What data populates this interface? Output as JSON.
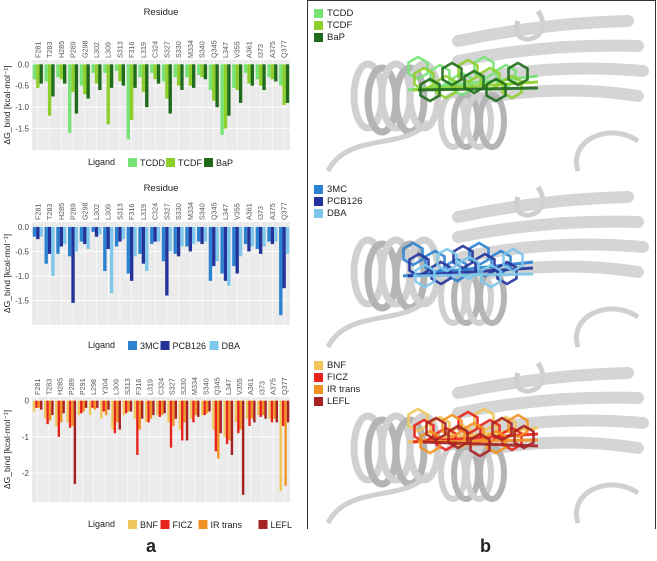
{
  "figure": {
    "label_a": "a",
    "label_b": "b"
  },
  "colors": {
    "TCDD": "#77e377",
    "TCDF": "#8fcf2b",
    "BaP": "#1f6b1b",
    "3MC": "#2b82d0",
    "PCB126": "#24339a",
    "DBA": "#7ec7ea",
    "BNF": "#f0c65a",
    "FICZ": "#e8231c",
    "IR trans": "#f39224",
    "LEFL": "#a62222"
  },
  "chart_data": [
    {
      "type": "bar",
      "title": "Residue",
      "ylabel": "ΔG_bind [kcal·mol⁻¹]",
      "legend_title": "Ligand",
      "ylim": [
        -2.0,
        0.1
      ],
      "yticks": [
        0.0,
        -0.5,
        -1.0,
        -1.5
      ],
      "categories": [
        "F281",
        "T283",
        "H285",
        "P289",
        "G298",
        "L302",
        "L309",
        "S313",
        "F316",
        "L319",
        "C324",
        "S327",
        "S330",
        "M334",
        "S340",
        "Q345",
        "L347",
        "V355",
        "A361",
        "I373",
        "A375",
        "Q377"
      ],
      "series": [
        {
          "name": "TCDD",
          "values": [
            -0.35,
            -0.4,
            -0.3,
            -1.6,
            -0.5,
            -0.2,
            -0.2,
            -0.15,
            -1.75,
            -0.3,
            -0.2,
            -0.4,
            -0.3,
            -0.3,
            -0.25,
            -0.6,
            -1.65,
            -0.55,
            -0.2,
            -0.35,
            -0.3,
            -0.5
          ]
        },
        {
          "name": "TCDF",
          "values": [
            -0.55,
            -1.2,
            -0.35,
            -0.65,
            -0.7,
            -0.45,
            -1.4,
            -0.4,
            -1.3,
            -0.65,
            -0.35,
            -0.8,
            -0.5,
            -0.5,
            -0.3,
            -0.85,
            -1.5,
            -0.6,
            -0.45,
            -0.5,
            -0.35,
            -0.95
          ]
        },
        {
          "name": "BaP",
          "values": [
            -0.45,
            -0.75,
            -0.45,
            -1.15,
            -0.8,
            -0.6,
            -0.55,
            -0.5,
            -0.55,
            -1.0,
            -0.45,
            -1.15,
            -0.6,
            -0.55,
            -0.35,
            -1.0,
            -1.2,
            -0.9,
            -0.5,
            -0.6,
            -0.4,
            -0.9
          ]
        }
      ]
    },
    {
      "type": "bar",
      "title": "Residue",
      "ylabel": "ΔG_bind [kcal·mol⁻¹]",
      "legend_title": "Ligand",
      "ylim": [
        -2.0,
        0.1
      ],
      "yticks": [
        0.0,
        -0.5,
        -1.0,
        -1.5
      ],
      "categories": [
        "F281",
        "T283",
        "H285",
        "P289",
        "G298",
        "L302",
        "L309",
        "S313",
        "F316",
        "L319",
        "C324",
        "S327",
        "S330",
        "M334",
        "S340",
        "Q345",
        "L347",
        "V355",
        "A361",
        "I373",
        "A375",
        "Q377"
      ],
      "series": [
        {
          "name": "3MC",
          "values": [
            -0.2,
            -0.75,
            -0.55,
            -0.6,
            -0.3,
            -0.1,
            -0.9,
            -0.4,
            -0.95,
            -0.55,
            -0.35,
            -0.7,
            -0.55,
            -0.4,
            -0.3,
            -1.1,
            -0.95,
            -0.8,
            -0.35,
            -0.45,
            -0.3,
            -1.8
          ]
        },
        {
          "name": "PCB126",
          "values": [
            -0.25,
            -0.55,
            -0.4,
            -1.55,
            -0.35,
            -0.2,
            -0.45,
            -0.3,
            -1.1,
            -0.75,
            -0.3,
            -1.4,
            -0.6,
            -0.5,
            -0.35,
            -0.8,
            -1.1,
            -0.95,
            -0.5,
            -0.55,
            -0.35,
            -1.25
          ]
        },
        {
          "name": "DBA",
          "values": [
            -0.2,
            -1.0,
            -0.35,
            -0.5,
            -0.45,
            -0.15,
            -1.35,
            -0.25,
            -0.6,
            -0.9,
            -0.3,
            -0.5,
            -0.4,
            -0.35,
            -0.3,
            -0.7,
            -1.2,
            -0.6,
            -0.4,
            -0.4,
            -0.3,
            -0.55
          ]
        }
      ]
    },
    {
      "type": "bar",
      "title": "",
      "ylabel": "ΔG_bind [kcal·mol⁻¹]",
      "legend_title": "Ligand",
      "ylim": [
        -2.8,
        0.1
      ],
      "yticks": [
        0,
        -1,
        -2
      ],
      "categories": [
        "F281",
        "T283",
        "H285",
        "P289",
        "P291",
        "L298",
        "Y304",
        "L309",
        "S313",
        "F316",
        "L319",
        "C324",
        "S327",
        "S330",
        "M334",
        "S340",
        "Q345",
        "L347",
        "V355",
        "A361",
        "I373",
        "A375",
        "Q377"
      ],
      "series": [
        {
          "name": "BNF",
          "values": [
            -0.3,
            -0.5,
            -0.7,
            -0.6,
            -0.4,
            -0.4,
            -0.5,
            -0.8,
            -0.4,
            -0.5,
            -0.6,
            -0.4,
            -0.6,
            -0.8,
            -0.5,
            -0.4,
            -0.8,
            -1.0,
            -0.6,
            -0.5,
            -0.4,
            -0.5,
            -2.5
          ]
        },
        {
          "name": "FICZ",
          "values": [
            -0.2,
            -0.65,
            -1.0,
            -0.75,
            -0.35,
            -0.2,
            -0.3,
            -0.9,
            -0.35,
            -1.5,
            -0.6,
            -0.45,
            -1.3,
            -1.1,
            -0.6,
            -0.4,
            -1.4,
            -1.2,
            -0.9,
            -0.7,
            -0.45,
            -0.6,
            -0.7
          ]
        },
        {
          "name": "IR trans",
          "values": [
            -0.2,
            -0.55,
            -0.6,
            -0.7,
            -0.3,
            -0.25,
            -0.4,
            -0.6,
            -0.3,
            -0.8,
            -0.5,
            -0.4,
            -0.7,
            -0.6,
            -0.4,
            -0.35,
            -1.6,
            -1.1,
            -0.8,
            -0.5,
            -0.4,
            -0.5,
            -2.35
          ]
        },
        {
          "name": "LEFL",
          "values": [
            -0.25,
            -0.4,
            -0.35,
            -2.3,
            -0.2,
            -0.2,
            -0.25,
            -0.8,
            -0.3,
            -0.5,
            -0.4,
            -0.35,
            -0.5,
            -1.1,
            -0.45,
            -0.3,
            -0.9,
            -1.5,
            -2.6,
            -0.6,
            -0.5,
            -0.6,
            -0.6
          ]
        }
      ]
    }
  ],
  "structures": [
    {
      "legend": [
        "TCDD",
        "TCDF",
        "BaP"
      ]
    },
    {
      "legend": [
        "3MC",
        "PCB126",
        "DBA"
      ]
    },
    {
      "legend": [
        "BNF",
        "FICZ",
        "IR trans",
        "LEFL"
      ]
    }
  ]
}
